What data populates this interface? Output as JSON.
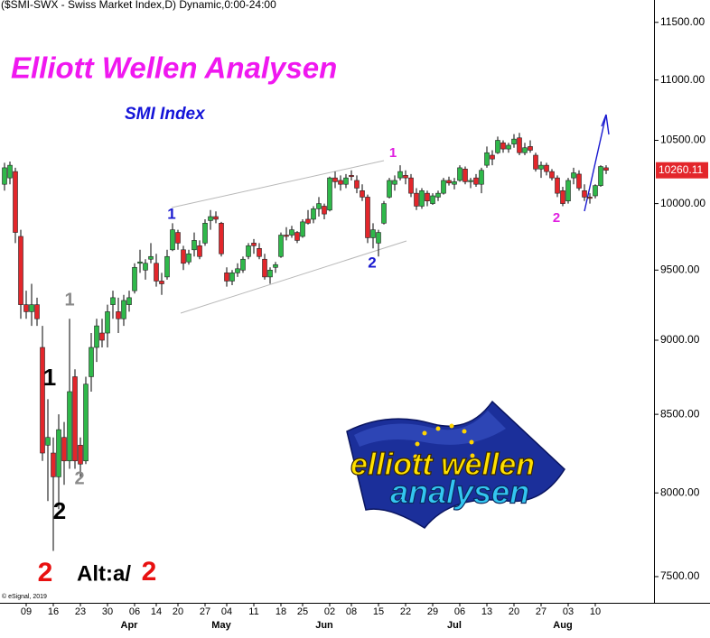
{
  "chart_data": {
    "type": "candlestick",
    "header": "($SMI-SWX - Swiss Market Index,D) Dynamic,0:00-24:00",
    "title": "Elliott Wellen Analysen",
    "title_color": "#f018f0",
    "subtitle": "SMI Index",
    "subtitle_color": "#1414d8",
    "source": "© eSignal, 2019",
    "logo": {
      "line1": "elliott wellen",
      "line2": "analysen"
    },
    "up_color": "#2fb84a",
    "down_color": "#e3262b",
    "last_label_color": "#e3262b",
    "log_y": true,
    "grid": false,
    "ylim": [
      7350,
      11700
    ],
    "yticks": [
      {
        "value": 7500,
        "label": "7500.00"
      },
      {
        "value": 8000,
        "label": "8000.00"
      },
      {
        "value": 8500,
        "label": "8500.00"
      },
      {
        "value": 9000,
        "label": "9000.00"
      },
      {
        "value": 9500,
        "label": "9500.00"
      },
      {
        "value": 10000,
        "label": "10000.00"
      },
      {
        "value": 10500,
        "label": "10500.00"
      },
      {
        "value": 11000,
        "label": "11000.00"
      },
      {
        "value": 11500,
        "label": "11500.00"
      }
    ],
    "categories": [
      null,
      null,
      null,
      null,
      "09",
      null,
      null,
      null,
      null,
      "16",
      null,
      null,
      null,
      null,
      "23",
      null,
      null,
      null,
      null,
      "30",
      null,
      null,
      null,
      null,
      "06",
      null,
      null,
      null,
      "14",
      null,
      null,
      null,
      "20",
      null,
      null,
      null,
      null,
      "27",
      null,
      null,
      null,
      "04",
      null,
      null,
      null,
      null,
      "11",
      null,
      null,
      null,
      null,
      "18",
      null,
      null,
      null,
      "25",
      null,
      null,
      null,
      null,
      "02",
      null,
      null,
      null,
      "08",
      null,
      null,
      null,
      null,
      "15",
      null,
      null,
      null,
      null,
      "22",
      null,
      null,
      null,
      null,
      "29",
      null,
      null,
      null,
      null,
      "06",
      null,
      null,
      null,
      null,
      "13",
      null,
      null,
      null,
      null,
      "20",
      null,
      null,
      null,
      null,
      "27",
      null,
      null,
      null,
      null,
      "03",
      null,
      null,
      null,
      null,
      "10",
      null,
      null
    ],
    "month_labels": [
      {
        "value": 24,
        "label": "Apr"
      },
      {
        "value": 41,
        "label": "May"
      },
      {
        "value": 60,
        "label": "Jun"
      },
      {
        "value": 84,
        "label": "Jul"
      },
      {
        "value": 104,
        "label": "Aug"
      }
    ],
    "ohlc": [
      [
        10150,
        10320,
        10100,
        10280
      ],
      [
        10200,
        10330,
        10150,
        10300
      ],
      [
        10250,
        10280,
        9700,
        9780
      ],
      [
        9750,
        9800,
        9150,
        9250
      ],
      [
        9250,
        9350,
        9150,
        9200
      ],
      [
        9200,
        9400,
        9100,
        9250
      ],
      [
        9250,
        9300,
        9100,
        9150
      ],
      [
        8950,
        9100,
        8200,
        8250
      ],
      [
        8300,
        8600,
        7950,
        8350
      ],
      [
        8250,
        8350,
        7650,
        8100
      ],
      [
        8100,
        8500,
        7900,
        8400
      ],
      [
        8350,
        8450,
        8050,
        8200
      ],
      [
        8200,
        9150,
        8150,
        8650
      ],
      [
        8750,
        8800,
        8150,
        8200
      ],
      [
        8300,
        8350,
        8100,
        8180
      ],
      [
        8200,
        8750,
        8180,
        8700
      ],
      [
        8750,
        9050,
        8650,
        8950
      ],
      [
        8950,
        9150,
        8850,
        9100
      ],
      [
        9050,
        9150,
        8950,
        9000
      ],
      [
        9050,
        9250,
        8950,
        9200
      ],
      [
        9250,
        9350,
        9150,
        9300
      ],
      [
        9200,
        9300,
        9050,
        9150
      ],
      [
        9150,
        9320,
        9100,
        9280
      ],
      [
        9250,
        9350,
        9200,
        9300
      ],
      [
        9350,
        9550,
        9330,
        9520
      ],
      [
        9550,
        9650,
        9480,
        9560
      ],
      [
        9500,
        9580,
        9430,
        9550
      ],
      [
        9580,
        9700,
        9550,
        9600
      ],
      [
        9550,
        9620,
        9380,
        9420
      ],
      [
        9420,
        9480,
        9320,
        9400
      ],
      [
        9450,
        9650,
        9430,
        9600
      ],
      [
        9650,
        9850,
        9640,
        9800
      ],
      [
        9780,
        9800,
        9650,
        9700
      ],
      [
        9650,
        9680,
        9500,
        9550
      ],
      [
        9560,
        9650,
        9540,
        9620
      ],
      [
        9650,
        9780,
        9600,
        9720
      ],
      [
        9680,
        9720,
        9580,
        9600
      ],
      [
        9700,
        9880,
        9680,
        9850
      ],
      [
        9870,
        9950,
        9800,
        9900
      ],
      [
        9900,
        9940,
        9850,
        9880
      ],
      [
        9850,
        9860,
        9600,
        9620
      ],
      [
        9480,
        9520,
        9380,
        9420
      ],
      [
        9420,
        9500,
        9390,
        9480
      ],
      [
        9480,
        9550,
        9450,
        9510
      ],
      [
        9500,
        9600,
        9480,
        9580
      ],
      [
        9600,
        9700,
        9580,
        9680
      ],
      [
        9700,
        9730,
        9620,
        9680
      ],
      [
        9660,
        9700,
        9580,
        9600
      ],
      [
        9580,
        9620,
        9430,
        9450
      ],
      [
        9450,
        9520,
        9400,
        9500
      ],
      [
        9520,
        9560,
        9480,
        9540
      ],
      [
        9600,
        9780,
        9590,
        9760
      ],
      [
        9760,
        9820,
        9720,
        9750
      ],
      [
        9760,
        9830,
        9740,
        9800
      ],
      [
        9780,
        9790,
        9700,
        9720
      ],
      [
        9750,
        9880,
        9740,
        9860
      ],
      [
        9880,
        9950,
        9840,
        9850
      ],
      [
        9880,
        9980,
        9850,
        9960
      ],
      [
        9960,
        10050,
        9900,
        10000
      ],
      [
        9980,
        10000,
        9880,
        9920
      ],
      [
        9950,
        10210,
        9940,
        10200
      ],
      [
        10200,
        10250,
        10120,
        10170
      ],
      [
        10180,
        10220,
        10100,
        10150
      ],
      [
        10150,
        10230,
        10120,
        10200
      ],
      [
        10220,
        10260,
        10180,
        10210
      ],
      [
        10180,
        10220,
        10080,
        10120
      ],
      [
        10100,
        10150,
        10020,
        10050
      ],
      [
        10050,
        10070,
        9700,
        9740
      ],
      [
        9740,
        9850,
        9660,
        9800
      ],
      [
        9700,
        9800,
        9600,
        9780
      ],
      [
        9850,
        10020,
        9840,
        10000
      ],
      [
        10050,
        10200,
        10040,
        10180
      ],
      [
        10150,
        10220,
        10100,
        10180
      ],
      [
        10200,
        10300,
        10180,
        10250
      ],
      [
        10220,
        10260,
        10150,
        10200
      ],
      [
        10200,
        10230,
        10050,
        10080
      ],
      [
        10080,
        10120,
        9950,
        9980
      ],
      [
        9980,
        10120,
        9960,
        10100
      ],
      [
        10080,
        10100,
        9980,
        10020
      ],
      [
        10000,
        10080,
        9990,
        10060
      ],
      [
        10050,
        10100,
        10020,
        10080
      ],
      [
        10080,
        10200,
        10070,
        10180
      ],
      [
        10180,
        10210,
        10140,
        10160
      ],
      [
        10150,
        10200,
        10110,
        10170
      ],
      [
        10180,
        10300,
        10170,
        10280
      ],
      [
        10270,
        10290,
        10150,
        10170
      ],
      [
        10170,
        10200,
        10120,
        10180
      ],
      [
        10200,
        10230,
        10130,
        10150
      ],
      [
        10150,
        10280,
        10080,
        10260
      ],
      [
        10300,
        10450,
        10280,
        10400
      ],
      [
        10380,
        10420,
        10300,
        10350
      ],
      [
        10400,
        10530,
        10390,
        10500
      ],
      [
        10480,
        10500,
        10400,
        10430
      ],
      [
        10430,
        10480,
        10400,
        10460
      ],
      [
        10470,
        10550,
        10440,
        10510
      ],
      [
        10520,
        10560,
        10380,
        10400
      ],
      [
        10400,
        10480,
        10380,
        10440
      ],
      [
        10450,
        10500,
        10400,
        10420
      ],
      [
        10380,
        10400,
        10250,
        10270
      ],
      [
        10270,
        10330,
        10200,
        10300
      ],
      [
        10300,
        10320,
        10220,
        10250
      ],
      [
        10250,
        10270,
        10180,
        10200
      ],
      [
        10200,
        10220,
        10050,
        10080
      ],
      [
        10100,
        10130,
        9980,
        10000
      ],
      [
        10020,
        10200,
        10000,
        10180
      ],
      [
        10200,
        10280,
        10150,
        10240
      ],
      [
        10230,
        10260,
        10100,
        10120
      ],
      [
        10100,
        10150,
        10020,
        10050
      ],
      [
        10050,
        10080,
        10000,
        10040
      ],
      [
        10060,
        10150,
        10040,
        10140
      ],
      [
        10140,
        10300,
        10130,
        10290
      ],
      [
        10280,
        10300,
        10230,
        10260.11
      ]
    ],
    "annotations": [
      {
        "text": "1",
        "color": "#1a1ad0"
      },
      {
        "text": "1",
        "color": "#e020e0"
      },
      {
        "text": "2",
        "color": "#1a1ad0"
      },
      {
        "text": "2",
        "color": "#e020e0"
      },
      {
        "text": "1",
        "color": "#8a8a8a"
      },
      {
        "text": "2",
        "color": "#8a8a8a"
      },
      {
        "text": "1",
        "color": "#000000"
      },
      {
        "text": "2",
        "color": "#000000"
      },
      {
        "text": "2",
        "color": "#e81010"
      },
      {
        "text": "Alt:a/",
        "color": "#000000"
      },
      {
        "text": "2",
        "color": "#e81010"
      }
    ]
  }
}
